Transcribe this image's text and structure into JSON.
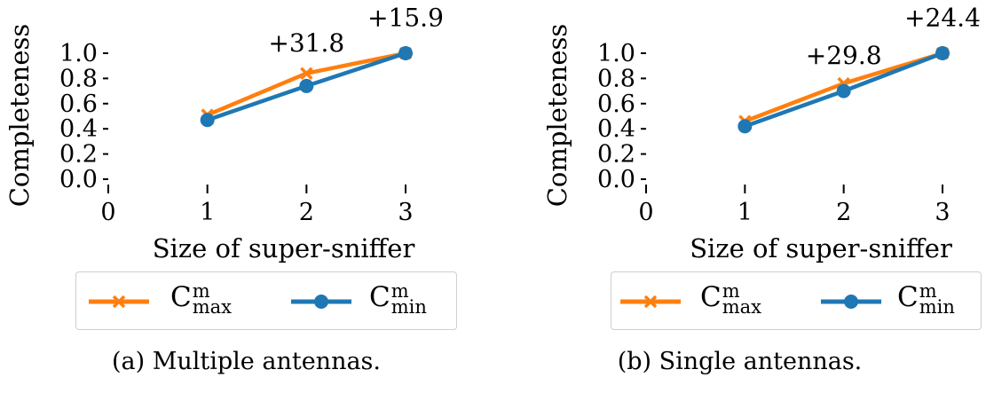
{
  "chart_data": [
    {
      "type": "line",
      "caption": "(a) Multiple antennas.",
      "xlabel": "Size of super-sniffer",
      "ylabel": "Completeness",
      "xlim": [
        0,
        3
      ],
      "ylim": [
        0,
        1.0
      ],
      "xticks": [
        "0",
        "1",
        "2",
        "3"
      ],
      "yticks": [
        "0.0",
        "0.2",
        "0.4",
        "0.6",
        "0.8",
        "1.0"
      ],
      "x": [
        1,
        2,
        3
      ],
      "series": [
        {
          "name": "C",
          "sup": "m",
          "sub": "max",
          "values": [
            0.51,
            0.84,
            1.0
          ],
          "color": "#ff7f0e",
          "marker": "x"
        },
        {
          "name": "C",
          "sup": "m",
          "sub": "min",
          "values": [
            0.47,
            0.74,
            1.0
          ],
          "color": "#1f77b4",
          "marker": "o"
        }
      ],
      "annotations": [
        {
          "text": "+31.8",
          "x": 2,
          "y": 1.1
        },
        {
          "text": "+15.9",
          "x": 3,
          "y": 1.3
        }
      ],
      "grid": false,
      "legend": "bottom"
    },
    {
      "type": "line",
      "caption": "(b) Single antennas.",
      "xlabel": "Size of super-sniffer",
      "ylabel": "Completeness",
      "xlim": [
        0,
        3
      ],
      "ylim": [
        0,
        1.0
      ],
      "xticks": [
        "0",
        "1",
        "2",
        "3"
      ],
      "yticks": [
        "0.0",
        "0.2",
        "0.4",
        "0.6",
        "0.8",
        "1.0"
      ],
      "x": [
        1,
        2,
        3
      ],
      "series": [
        {
          "name": "C",
          "sup": "m",
          "sub": "max",
          "values": [
            0.46,
            0.76,
            1.0
          ],
          "color": "#ff7f0e",
          "marker": "x"
        },
        {
          "name": "C",
          "sup": "m",
          "sub": "min",
          "values": [
            0.42,
            0.7,
            1.0
          ],
          "color": "#1f77b4",
          "marker": "o"
        }
      ],
      "annotations": [
        {
          "text": "+29.8",
          "x": 2,
          "y": 1.0
        },
        {
          "text": "+24.4",
          "x": 3,
          "y": 1.3
        }
      ],
      "grid": false,
      "legend": "bottom"
    }
  ]
}
